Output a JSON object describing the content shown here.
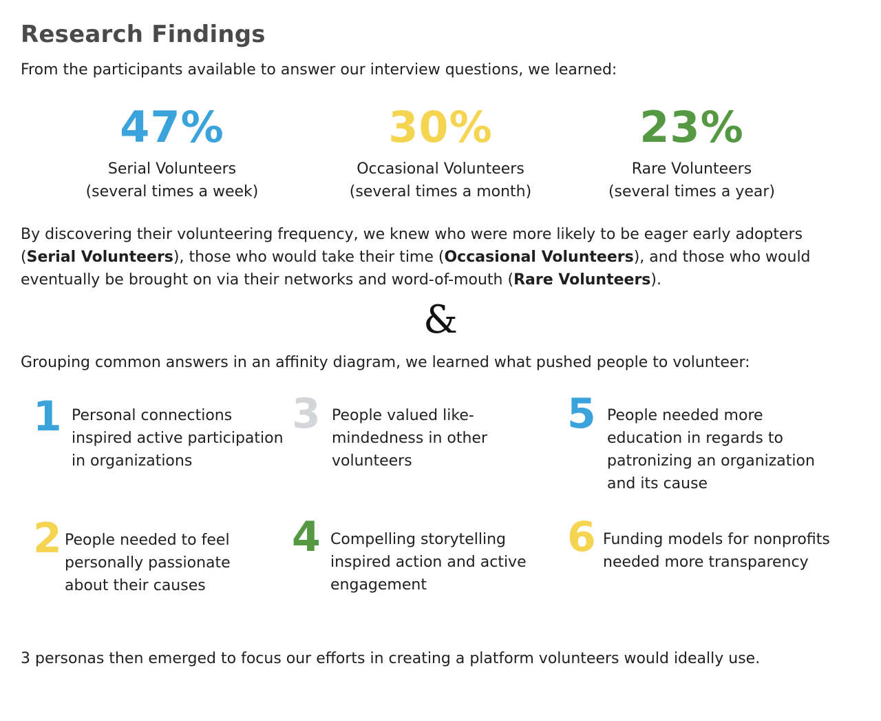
{
  "title": "Research Findings",
  "intro": "From the participants available to answer our interview questions, we learned:",
  "stats": [
    {
      "value": "47%",
      "label": "Serial Volunteers",
      "sub": "(several times a week)",
      "color": "#3aa3dc"
    },
    {
      "value": "30%",
      "label": "Occasional Volunteers",
      "sub": "(several times a month)",
      "color": "#f5d452"
    },
    {
      "value": "23%",
      "label": "Rare Volunteers",
      "sub": "(several times a year)",
      "color": "#549843"
    }
  ],
  "paragraph": {
    "line1": "By discovering their volunteering frequency, we knew who were more likely to be eager early adopters",
    "line2_a": "(",
    "line2_b": "Serial Volunteers",
    "line2_c": "), those who would take their time (",
    "line2_d": "Occasional Volunteers",
    "line2_e": "), and those who would",
    "line3_a": "eventually be brought on via their networks and word-of-mouth (",
    "line3_b": "Rare Volunteers",
    "line3_c": ")."
  },
  "ampersand": "&",
  "grouping_intro": "Grouping common answers in an affinity diagram, we learned what pushed people to volunteer:",
  "findings": [
    {
      "number": "1",
      "color": "#3aa3dc",
      "lines": [
        "Personal connections",
        "inspired active participation",
        "in organizations"
      ]
    },
    {
      "number": "2",
      "color": "#f5d452",
      "lines": [
        "People needed to feel",
        "personally passionate",
        "about their causes"
      ]
    },
    {
      "number": "3",
      "color": "#d3d5d9",
      "lines": [
        "People valued like-",
        "mindedness in other",
        "volunteers"
      ]
    },
    {
      "number": "4",
      "color": "#549843",
      "lines": [
        "Compelling storytelling",
        "inspired action and active",
        "engagement"
      ]
    },
    {
      "number": "5",
      "color": "#3aa3dc",
      "lines": [
        "People needed more",
        "education in regards to",
        "patronizing an organization",
        "and its cause"
      ]
    },
    {
      "number": "6",
      "color": "#f5d452",
      "lines": [
        "Funding models for nonprofits",
        "needed more transparency"
      ]
    }
  ],
  "conclusion": "3 personas then emerged to focus our efforts in creating a platform volunteers would ideally use."
}
